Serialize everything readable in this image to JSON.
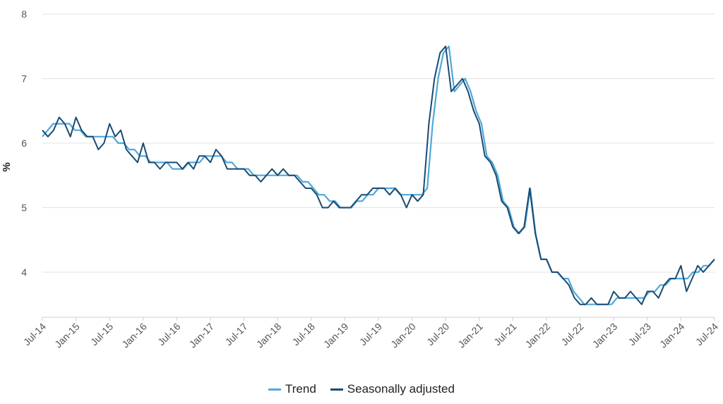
{
  "chart_data": {
    "type": "line",
    "ylabel": "%",
    "ylim": [
      3.3,
      8
    ],
    "yticks": [
      4,
      5,
      6,
      7,
      8
    ],
    "xticks": [
      "Jul-14",
      "Jan-15",
      "Jul-15",
      "Jan-16",
      "Jul-16",
      "Jan-17",
      "Jul-17",
      "Jan-18",
      "Jul-18",
      "Jan-19",
      "Jul-19",
      "Jan-20",
      "Jul-20",
      "Jan-21",
      "Jul-21",
      "Jan-22",
      "Jul-22",
      "Jan-23",
      "Jul-23",
      "Jan-24",
      "Jul-24"
    ],
    "x_start": "Jul-14",
    "x_end": "Jul-24",
    "grid": "horizontal",
    "legend_position": "bottom",
    "series": [
      {
        "name": "Trend",
        "color": "#4fa8dc",
        "values": [
          6.1,
          6.2,
          6.3,
          6.3,
          6.3,
          6.3,
          6.2,
          6.2,
          6.1,
          6.1,
          6.1,
          6.1,
          6.1,
          6.1,
          6.0,
          6.0,
          5.9,
          5.9,
          5.8,
          5.8,
          5.7,
          5.7,
          5.7,
          5.7,
          5.6,
          5.6,
          5.6,
          5.7,
          5.7,
          5.7,
          5.8,
          5.8,
          5.8,
          5.8,
          5.7,
          5.7,
          5.6,
          5.6,
          5.6,
          5.5,
          5.5,
          5.5,
          5.5,
          5.5,
          5.5,
          5.5,
          5.5,
          5.5,
          5.4,
          5.4,
          5.3,
          5.2,
          5.2,
          5.1,
          5.1,
          5.0,
          5.0,
          5.0,
          5.1,
          5.1,
          5.2,
          5.2,
          5.3,
          5.3,
          5.3,
          5.3,
          5.2,
          5.2,
          5.2,
          5.2,
          5.2,
          5.3,
          6.3,
          7.0,
          7.4,
          7.5,
          6.8,
          6.9,
          7.0,
          6.8,
          6.5,
          6.3,
          5.8,
          5.7,
          5.5,
          5.1,
          5.0,
          4.7,
          4.6,
          4.7,
          5.3,
          4.6,
          4.2,
          4.2,
          4.0,
          4.0,
          3.9,
          3.9,
          3.7,
          3.6,
          3.5,
          3.5,
          3.5,
          3.5,
          3.5,
          3.5,
          3.6,
          3.6,
          3.6,
          3.6,
          3.6,
          3.6,
          3.7,
          3.7,
          3.8,
          3.8,
          3.9,
          3.9,
          3.9,
          3.9,
          4.0,
          4.0,
          4.1,
          4.1,
          4.2
        ]
      },
      {
        "name": "Seasonally adjusted",
        "color": "#1b4b72",
        "values": [
          6.2,
          6.1,
          6.2,
          6.4,
          6.3,
          6.1,
          6.4,
          6.2,
          6.1,
          6.1,
          5.9,
          6.0,
          6.3,
          6.1,
          6.2,
          5.9,
          5.8,
          5.7,
          6.0,
          5.7,
          5.7,
          5.6,
          5.7,
          5.7,
          5.7,
          5.6,
          5.7,
          5.6,
          5.8,
          5.8,
          5.7,
          5.9,
          5.8,
          5.6,
          5.6,
          5.6,
          5.6,
          5.5,
          5.5,
          5.4,
          5.5,
          5.6,
          5.5,
          5.6,
          5.5,
          5.5,
          5.4,
          5.3,
          5.3,
          5.2,
          5.0,
          5.0,
          5.1,
          5.0,
          5.0,
          5.0,
          5.1,
          5.2,
          5.2,
          5.3,
          5.3,
          5.3,
          5.2,
          5.3,
          5.2,
          5.0,
          5.2,
          5.1,
          5.2,
          6.3,
          7.0,
          7.4,
          7.5,
          6.8,
          6.9,
          7.0,
          6.8,
          6.5,
          6.3,
          5.8,
          5.7,
          5.5,
          5.1,
          5.0,
          4.7,
          4.6,
          4.7,
          5.3,
          4.6,
          4.2,
          4.2,
          4.0,
          4.0,
          3.9,
          3.8,
          3.6,
          3.5,
          3.5,
          3.6,
          3.5,
          3.5,
          3.5,
          3.7,
          3.6,
          3.6,
          3.7,
          3.6,
          3.5,
          3.7,
          3.7,
          3.6,
          3.8,
          3.9,
          3.9,
          4.1,
          3.7,
          3.9,
          4.1,
          4.0,
          4.1,
          4.2
        ]
      }
    ]
  }
}
